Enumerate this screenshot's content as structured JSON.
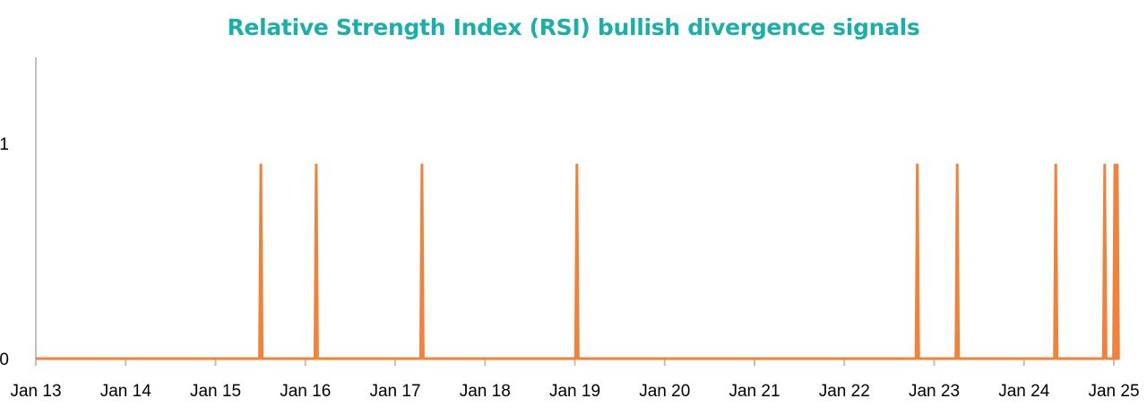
{
  "chart_data": {
    "type": "line",
    "title": "Relative Strength Index (RSI) bullish divergence signals",
    "xlabel": "",
    "ylabel": "",
    "x_ticks": [
      "Jan 13",
      "Jan 14",
      "Jan 15",
      "Jan 16",
      "Jan 17",
      "Jan 18",
      "Jan 19",
      "Jan 20",
      "Jan 21",
      "Jan 22",
      "Jan 23",
      "Jan 24",
      "Jan 25"
    ],
    "xlim": [
      "2013-01-01",
      "2025-01-01"
    ],
    "y_ticks": [
      "0",
      "1"
    ],
    "ylim": [
      0,
      1.4
    ],
    "grid": false,
    "colors": {
      "series": "#F0823A",
      "title": "#1AAFA8",
      "axis": "#BFBFBF"
    },
    "series": [
      {
        "signal_dates": [
          "2015-07-05",
          "2016-02-15",
          "2017-04-20",
          "2019-01-10",
          "2022-10-25",
          "2023-04-05",
          "2024-05-10",
          "2024-11-25",
          "2025-01-05",
          "2025-01-15"
        ],
        "signal_value": 0.9,
        "baseline_value": 0
      }
    ]
  }
}
